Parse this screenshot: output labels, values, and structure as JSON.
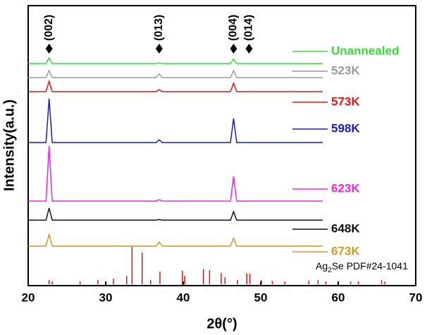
{
  "chart_data": {
    "type": "line",
    "xlabel": "2θ(°)",
    "ylabel": "Intensity(a.u.)",
    "xlim": [
      20,
      70
    ],
    "xticks": [
      20,
      30,
      40,
      50,
      60,
      70
    ],
    "ylim": [
      0,
      100
    ],
    "x": [
      20,
      22.3,
      22.7,
      23.1,
      36.5,
      36.9,
      37.3,
      46.1,
      46.5,
      46.9,
      58
    ],
    "series": [
      {
        "name": "Unannealed",
        "color": "#33dd33",
        "values": [
          79.3,
          79.3,
          81.4,
          79.3,
          79.3,
          79.6,
          79.3,
          79.3,
          80.9,
          79.3,
          79.3
        ]
      },
      {
        "name": "523K",
        "color": "#999999",
        "values": [
          74.3,
          74.3,
          76.8,
          74.3,
          74.3,
          75.6,
          74.3,
          74.3,
          76.8,
          74.3,
          74.3
        ]
      },
      {
        "name": "573K",
        "color": "#ee1111",
        "values": [
          69.3,
          69.3,
          73.0,
          69.3,
          69.3,
          70.0,
          69.3,
          69.3,
          72.3,
          69.3,
          69.3
        ]
      },
      {
        "name": "598K",
        "color": "#1a1acc",
        "values": [
          51.1,
          51.1,
          66.8,
          51.1,
          51.1,
          52.1,
          51.1,
          51.1,
          59.7,
          51.1,
          51.1
        ]
      },
      {
        "name": "623K",
        "color": "#ee22ee",
        "values": [
          30.2,
          30.2,
          49.9,
          30.2,
          30.2,
          30.7,
          30.2,
          30.2,
          39.0,
          30.2,
          30.2
        ]
      },
      {
        "name": "648K",
        "color": "#111111",
        "values": [
          23.4,
          23.4,
          27.7,
          23.4,
          23.4,
          23.6,
          23.4,
          23.4,
          26.4,
          23.4,
          23.4
        ]
      },
      {
        "name": "673K",
        "color": "#cc9922",
        "values": [
          14.1,
          14.1,
          18.4,
          14.1,
          14.1,
          15.6,
          14.1,
          14.1,
          16.9,
          14.1,
          14.1
        ]
      }
    ],
    "annotations": [
      {
        "text": "(002)",
        "x": 22.7
      },
      {
        "text": "(013)",
        "x": 36.9
      },
      {
        "text": "(004)",
        "x": 46.5
      },
      {
        "text": "(014)",
        "x": 48.5
      }
    ],
    "reference": {
      "label": [
        "Ag",
        "2",
        "Se PDF#24-1041"
      ],
      "color": "#dd1111",
      "x": [
        22.7,
        23.1,
        26.7,
        29.0,
        31.0,
        32.7,
        33.4,
        34.7,
        35.8,
        37.0,
        39.9,
        40.2,
        42.6,
        43.4,
        44.9,
        45.4,
        47.0,
        48.2,
        48.6,
        50.1,
        51.5,
        53.1,
        56.2,
        57.4,
        58.4,
        61.6,
        62.6,
        65.6,
        66.0
      ],
      "values": [
        1.5,
        1.0,
        1.0,
        1.5,
        2.0,
        3.0,
        13.4,
        11.3,
        1.5,
        4.5,
        4.8,
        3.0,
        5.3,
        5.0,
        4.0,
        2.5,
        1.5,
        3.8,
        3.8,
        1.5,
        1.2,
        1.0,
        1.2,
        1.5,
        1.0,
        1.0,
        1.0,
        1.5,
        1.0
      ]
    }
  }
}
